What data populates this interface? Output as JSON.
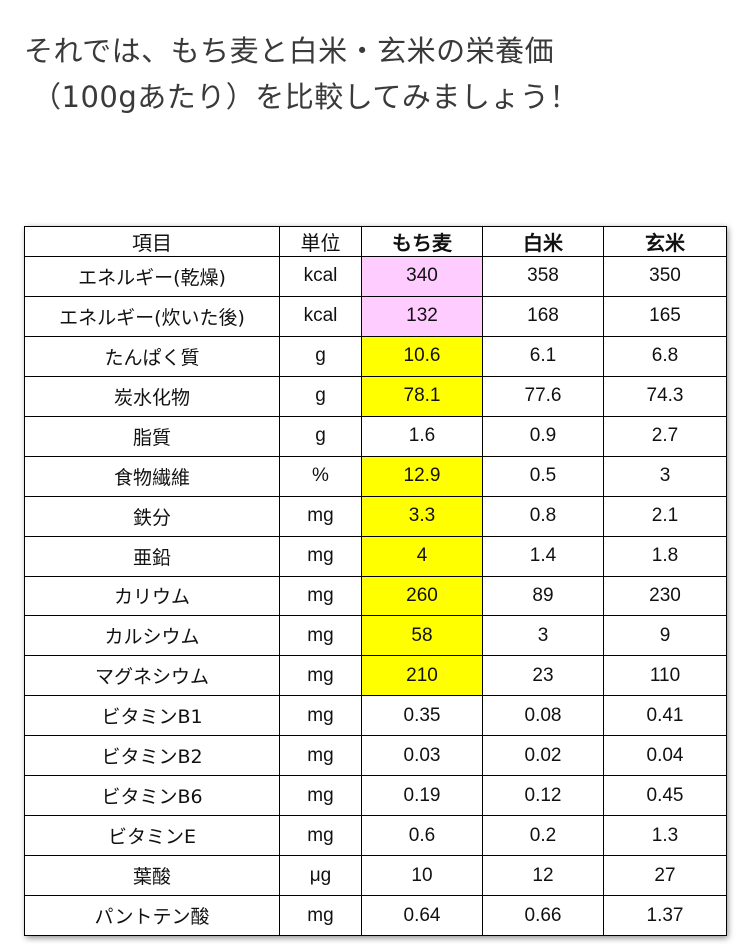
{
  "intro": {
    "line1": "それでは、もち麦と白米・玄米の栄養価",
    "line2": "（100gあたり）を比較してみましょう！"
  },
  "table": {
    "headers": [
      "項目",
      "単位",
      "もち麦",
      "白米",
      "玄米"
    ],
    "rows": [
      {
        "item": "エネルギー(乾燥)",
        "unit": "kcal",
        "mochimugi": "340",
        "hakumai": "358",
        "genmai": "350",
        "highlight": "pink"
      },
      {
        "item": "エネルギー(炊いた後)",
        "unit": "kcal",
        "mochimugi": "132",
        "hakumai": "168",
        "genmai": "165",
        "highlight": "pink"
      },
      {
        "item": "たんぱく質",
        "unit": "g",
        "mochimugi": "10.6",
        "hakumai": "6.1",
        "genmai": "6.8",
        "highlight": "yellow"
      },
      {
        "item": "炭水化物",
        "unit": "g",
        "mochimugi": "78.1",
        "hakumai": "77.6",
        "genmai": "74.3",
        "highlight": "yellow"
      },
      {
        "item": "脂質",
        "unit": "g",
        "mochimugi": "1.6",
        "hakumai": "0.9",
        "genmai": "2.7",
        "highlight": "none"
      },
      {
        "item": "食物繊維",
        "unit": "%",
        "mochimugi": "12.9",
        "hakumai": "0.5",
        "genmai": "3",
        "highlight": "yellow"
      },
      {
        "item": "鉄分",
        "unit": "mg",
        "mochimugi": "3.3",
        "hakumai": "0.8",
        "genmai": "2.1",
        "highlight": "yellow"
      },
      {
        "item": "亜鉛",
        "unit": "mg",
        "mochimugi": "4",
        "hakumai": "1.4",
        "genmai": "1.8",
        "highlight": "yellow"
      },
      {
        "item": "カリウム",
        "unit": "mg",
        "mochimugi": "260",
        "hakumai": "89",
        "genmai": "230",
        "highlight": "yellow"
      },
      {
        "item": "カルシウム",
        "unit": "mg",
        "mochimugi": "58",
        "hakumai": "3",
        "genmai": "9",
        "highlight": "yellow"
      },
      {
        "item": "マグネシウム",
        "unit": "mg",
        "mochimugi": "210",
        "hakumai": "23",
        "genmai": "110",
        "highlight": "yellow"
      },
      {
        "item": "ビタミンB1",
        "unit": "mg",
        "mochimugi": "0.35",
        "hakumai": "0.08",
        "genmai": "0.41",
        "highlight": "none"
      },
      {
        "item": "ビタミンB2",
        "unit": "mg",
        "mochimugi": "0.03",
        "hakumai": "0.02",
        "genmai": "0.04",
        "highlight": "none"
      },
      {
        "item": "ビタミンB6",
        "unit": "mg",
        "mochimugi": "0.19",
        "hakumai": "0.12",
        "genmai": "0.45",
        "highlight": "none"
      },
      {
        "item": "ビタミンE",
        "unit": "mg",
        "mochimugi": "0.6",
        "hakumai": "0.2",
        "genmai": "1.3",
        "highlight": "none"
      },
      {
        "item": "葉酸",
        "unit": "μg",
        "mochimugi": "10",
        "hakumai": "12",
        "genmai": "27",
        "highlight": "none"
      },
      {
        "item": "パントテン酸",
        "unit": "mg",
        "mochimugi": "0.64",
        "hakumai": "0.66",
        "genmai": "1.37",
        "highlight": "none"
      }
    ]
  },
  "colors": {
    "highlight_yellow": "#ffff00",
    "highlight_pink": "#ffccff"
  }
}
